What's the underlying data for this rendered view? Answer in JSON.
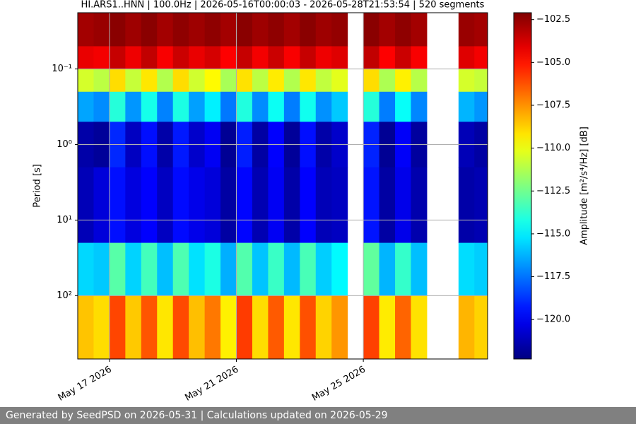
{
  "chart_data": {
    "type": "heatmap",
    "title": "HI.ARS1..HNN | 100.0Hz | 2026-05-16T00:00:03 - 2026-05-28T21:53:54 | 520 segments",
    "y_label": "Period [s]",
    "colorbar_label": "Amplitude [m²/s⁴/Hz] [dB]",
    "x": [
      "2026-05-16T00:00",
      "2026-05-16T12:00",
      "2026-05-17T00:00",
      "2026-05-17T12:00",
      "2026-05-18T00:00",
      "2026-05-18T12:00",
      "2026-05-19T00:00",
      "2026-05-19T12:00",
      "2026-05-20T00:00",
      "2026-05-20T12:00",
      "2026-05-21T00:00",
      "2026-05-21T12:00",
      "2026-05-22T00:00",
      "2026-05-22T12:00",
      "2026-05-23T00:00",
      "2026-05-23T12:00",
      "2026-05-24T00:00",
      "2026-05-24T12:00",
      "2026-05-25T00:00",
      "2026-05-25T12:00",
      "2026-05-26T00:00",
      "2026-05-26T12:00",
      "2026-05-27T00:00",
      "2026-05-27T12:00",
      "2026-05-28T00:00",
      "2026-05-28T12:00"
    ],
    "xlim": [
      "2026-05-16T00:00",
      "2026-05-28T22:00"
    ],
    "xticks": [
      {
        "value": "2026-05-17T00:00",
        "label": "May 17 2026"
      },
      {
        "value": "2026-05-21T00:00",
        "label": "May 21 2026"
      },
      {
        "value": "2026-05-25T00:00",
        "label": "May 25 2026"
      }
    ],
    "period_edges": [
      0.018,
      0.05,
      0.1,
      0.2,
      0.5,
      2,
      20,
      100,
      690
    ],
    "ylim": [
      0.018,
      690
    ],
    "log_y": true,
    "y_inverted": true,
    "yticks": [
      {
        "value": 0.1,
        "label": "10⁻¹"
      },
      {
        "value": 1,
        "label": "10⁰"
      },
      {
        "value": 10,
        "label": "10¹"
      },
      {
        "value": 100,
        "label": "10²"
      }
    ],
    "clim": [
      -122.3,
      -102.1
    ],
    "cticks": [
      {
        "value": -102.5,
        "label": "−102.5"
      },
      {
        "value": -105,
        "label": "−105.0"
      },
      {
        "value": -107.5,
        "label": "−107.5"
      },
      {
        "value": -110,
        "label": "−110.0"
      },
      {
        "value": -112.5,
        "label": "−112.5"
      },
      {
        "value": -115,
        "label": "−115.0"
      },
      {
        "value": -117.5,
        "label": "−117.5"
      },
      {
        "value": -120,
        "label": "−120.0"
      }
    ],
    "colormap": "jet",
    "grid": true,
    "z": [
      [
        -102.8,
        -102.6,
        -102.3,
        -102.7,
        -102.3,
        -102.8,
        -102.4,
        -102.7,
        -102.4,
        -102.8,
        -102.3,
        -102.7,
        -102.4,
        -102.8,
        -102.3,
        -102.7,
        -102.5,
        null,
        -102.3,
        -102.8,
        -102.4,
        -102.8,
        null,
        null,
        -102.6,
        -102.8
      ],
      [
        -104.2,
        -104.4,
        -103.5,
        -104.3,
        -103.4,
        -104.5,
        -103.6,
        -104.2,
        -103.8,
        -104.6,
        -103.5,
        -104.4,
        -103.6,
        -104.5,
        -103.5,
        -104.3,
        -104.0,
        null,
        -103.4,
        -104.6,
        -103.6,
        -104.5,
        null,
        null,
        -104.0,
        -104.4
      ],
      [
        -110.5,
        -111.0,
        -109.0,
        -110.8,
        -109.2,
        -111.2,
        -109.0,
        -110.6,
        -109.6,
        -111.4,
        -109.1,
        -111.0,
        -109.3,
        -111.2,
        -109.2,
        -110.9,
        -110.2,
        null,
        -109.0,
        -111.3,
        -109.4,
        -111.1,
        null,
        null,
        -110.5,
        -110.8
      ],
      [
        -116.5,
        -117.0,
        -114.0,
        -116.8,
        -114.3,
        -117.2,
        -114.2,
        -116.6,
        -115.0,
        -117.4,
        -114.1,
        -117.0,
        -114.5,
        -117.3,
        -114.4,
        -116.9,
        -115.8,
        null,
        -114.0,
        -117.3,
        -114.6,
        -117.1,
        null,
        null,
        -116.2,
        -116.8
      ],
      [
        -121.5,
        -121.8,
        -119.0,
        -121.0,
        -119.5,
        -121.5,
        -119.3,
        -120.8,
        -120.0,
        -121.9,
        -119.2,
        -121.6,
        -119.8,
        -121.8,
        -119.5,
        -121.5,
        -120.8,
        null,
        -119.1,
        -121.9,
        -119.9,
        -121.7,
        null,
        null,
        -121.2,
        -121.6
      ],
      [
        -121.2,
        -120.5,
        -119.5,
        -120.4,
        -119.8,
        -121.0,
        -119.6,
        -120.2,
        -120.5,
        -121.6,
        -119.7,
        -121.3,
        -120.0,
        -121.5,
        -119.8,
        -121.2,
        -121.0,
        null,
        -119.4,
        -121.6,
        -120.2,
        -121.4,
        null,
        null,
        -121.5,
        -121.3
      ],
      [
        -115.5,
        -115.8,
        -113.0,
        -115.6,
        -113.4,
        -116.0,
        -113.2,
        -115.3,
        -114.2,
        -116.3,
        -113.1,
        -115.9,
        -113.6,
        -116.1,
        -113.3,
        -115.7,
        -114.8,
        null,
        -112.8,
        -116.2,
        -113.7,
        -116.0,
        null,
        null,
        -115.4,
        -115.7
      ],
      [
        -108.5,
        -109.0,
        -106.0,
        -108.6,
        -106.3,
        -109.2,
        -106.1,
        -108.4,
        -107.0,
        -109.4,
        -105.8,
        -109.0,
        -106.4,
        -109.2,
        -106.2,
        -108.8,
        -107.6,
        null,
        -105.9,
        -109.3,
        -106.6,
        -109.1,
        null,
        null,
        -108.2,
        -108.8
      ]
    ]
  },
  "footer": "Generated by SeedPSD on 2026-05-31 | Calculations updated on 2026-05-29"
}
